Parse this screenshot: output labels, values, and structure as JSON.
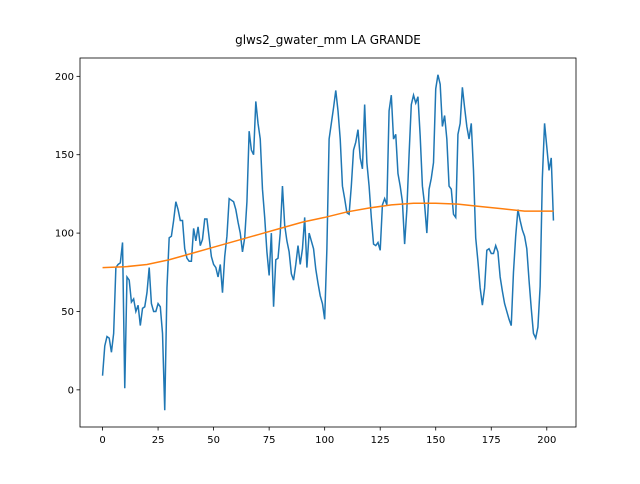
{
  "chart_data": {
    "type": "line",
    "title": "glws2_gwater_mm LA GRANDE",
    "xlim": [
      -10.15,
      213.15
    ],
    "xticks": [
      0,
      25,
      50,
      75,
      100,
      125,
      150,
      175,
      200
    ],
    "ylim": [
      -23.7,
      211.7
    ],
    "yticks": [
      0,
      50,
      100,
      150,
      200
    ],
    "series": [
      {
        "color": "#1f77b4",
        "x": [
          0,
          1,
          2,
          3,
          4,
          5,
          6,
          7,
          8,
          9,
          10,
          11,
          12,
          13,
          14,
          15,
          16,
          17,
          18,
          19,
          20,
          21,
          22,
          23,
          24,
          25,
          26,
          27,
          28,
          29,
          30,
          31,
          32,
          33,
          34,
          35,
          36,
          37,
          38,
          39,
          40,
          41,
          42,
          43,
          44,
          45,
          46,
          47,
          48,
          49,
          50,
          51,
          52,
          53,
          54,
          55,
          56,
          57,
          58,
          59,
          60,
          61,
          62,
          63,
          64,
          65,
          66,
          67,
          68,
          69,
          70,
          71,
          72,
          73,
          74,
          75,
          76,
          77,
          78,
          79,
          80,
          81,
          82,
          83,
          84,
          85,
          86,
          87,
          88,
          89,
          90,
          91,
          92,
          93,
          94,
          95,
          96,
          97,
          98,
          99,
          100,
          101,
          102,
          103,
          104,
          105,
          106,
          107,
          108,
          109,
          110,
          111,
          112,
          113,
          114,
          115,
          116,
          117,
          118,
          119,
          120,
          121,
          122,
          123,
          124,
          125,
          126,
          127,
          128,
          129,
          130,
          131,
          132,
          133,
          134,
          135,
          136,
          137,
          138,
          139,
          140,
          141,
          142,
          143,
          144,
          145,
          146,
          147,
          148,
          149,
          150,
          151,
          152,
          153,
          154,
          155,
          156,
          157,
          158,
          159,
          160,
          161,
          162,
          163,
          164,
          165,
          166,
          167,
          168,
          169,
          170,
          171,
          172,
          173,
          174,
          175,
          176,
          177,
          178,
          179,
          180,
          181,
          182,
          183,
          184,
          185,
          186,
          187,
          188,
          189,
          190,
          191,
          192,
          193,
          194,
          195,
          196,
          197,
          198,
          199,
          200,
          201,
          202,
          203
        ],
        "values": [
          9,
          28,
          34,
          33,
          24,
          36,
          78,
          80,
          81,
          94,
          1,
          72,
          70,
          56,
          58,
          50,
          54,
          41,
          52,
          53,
          62,
          78,
          55,
          50,
          50,
          55,
          53,
          36,
          -13,
          65,
          97,
          98,
          108,
          120,
          115,
          108,
          108,
          90,
          84,
          82,
          82,
          103,
          95,
          104,
          92,
          96,
          109,
          109,
          97,
          85,
          80,
          78,
          72,
          80,
          62,
          85,
          98,
          122,
          121,
          120,
          115,
          107,
          100,
          88,
          97,
          120,
          165,
          153,
          150,
          184,
          170,
          160,
          128,
          110,
          88,
          73,
          100,
          53,
          83,
          84,
          100,
          130,
          105,
          95,
          88,
          74,
          70,
          80,
          92,
          80,
          90,
          110,
          78,
          100,
          95,
          90,
          77,
          68,
          60,
          55,
          45,
          90,
          160,
          170,
          180,
          191,
          178,
          160,
          130,
          122,
          113,
          112,
          130,
          153,
          158,
          166,
          148,
          141,
          182,
          145,
          130,
          110,
          93,
          92,
          94,
          89,
          118,
          122,
          118,
          178,
          188,
          160,
          163,
          138,
          130,
          120,
          93,
          115,
          150,
          182,
          188,
          183,
          187,
          162,
          130,
          118,
          100,
          128,
          135,
          145,
          192,
          201,
          195,
          168,
          175,
          160,
          130,
          128,
          112,
          110,
          163,
          170,
          193,
          180,
          168,
          160,
          170,
          140,
          97,
          82,
          65,
          54,
          65,
          89,
          90,
          87,
          87,
          92,
          88,
          72,
          63,
          55,
          50,
          45,
          41,
          75,
          98,
          115,
          108,
          102,
          98,
          90,
          70,
          52,
          36,
          33,
          40,
          66,
          135,
          170,
          155,
          140,
          148,
          108
        ]
      },
      {
        "color": "#ff7f0e",
        "x": [
          0,
          10,
          20,
          30,
          40,
          50,
          60,
          70,
          80,
          90,
          100,
          110,
          120,
          130,
          140,
          150,
          160,
          170,
          180,
          190,
          200,
          203
        ],
        "values": [
          78,
          78.5,
          80,
          83,
          87,
          91,
          95,
          99,
          103,
          107,
          110,
          113.5,
          116,
          118,
          119,
          119,
          118.5,
          117,
          115.5,
          114,
          114,
          114
        ]
      }
    ]
  }
}
